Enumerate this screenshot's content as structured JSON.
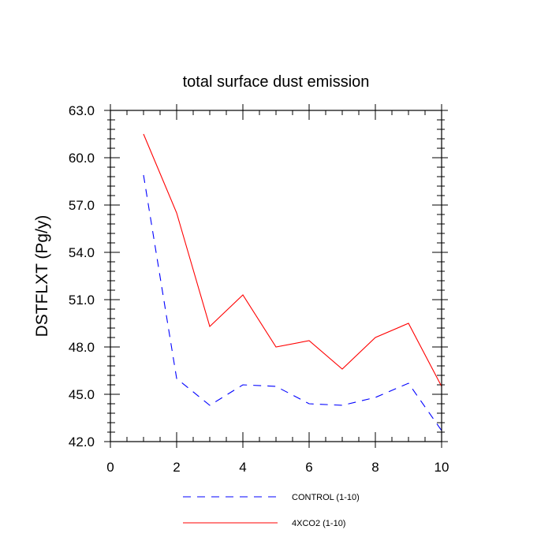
{
  "chart_data": {
    "type": "line",
    "title": "total surface dust emission",
    "ylabel": "DSTFLXT  (Pg/y)",
    "xlabel": "",
    "xlim": [
      0,
      10
    ],
    "ylim": [
      42.0,
      63.0
    ],
    "xticks": [
      "0",
      "2",
      "4",
      "6",
      "8",
      "10"
    ],
    "yticks": [
      "42.0",
      "45.0",
      "48.0",
      "51.0",
      "54.0",
      "57.0",
      "60.0",
      "63.0"
    ],
    "x": [
      1,
      2,
      3,
      4,
      5,
      6,
      7,
      8,
      9,
      10
    ],
    "legend_position": "bottom",
    "series": [
      {
        "name": "CONTROL (1-10)",
        "color": "#0000ff",
        "dash": "dashed",
        "values": [
          58.9,
          46.0,
          44.3,
          45.6,
          45.5,
          44.4,
          44.3,
          44.8,
          45.7,
          42.7
        ]
      },
      {
        "name": "4XCO2 (1-10)",
        "color": "#ff0000",
        "dash": "solid",
        "values": [
          61.5,
          56.5,
          49.3,
          51.3,
          48.0,
          48.4,
          46.6,
          48.6,
          49.5,
          45.5
        ]
      }
    ]
  }
}
